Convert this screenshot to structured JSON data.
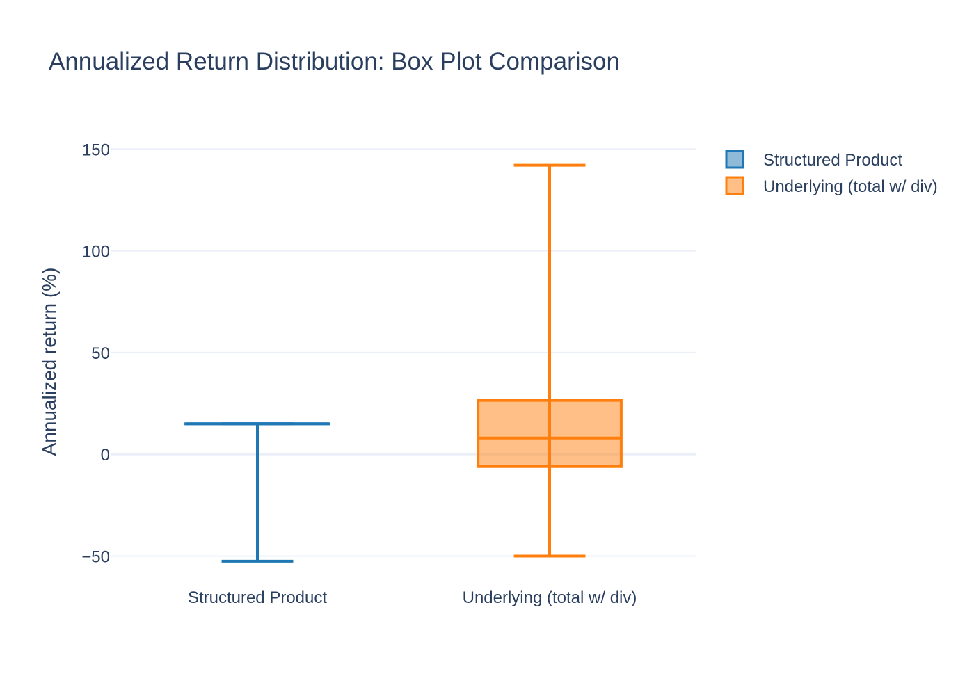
{
  "chart_data": {
    "type": "box",
    "title": "Annualized Return Distribution: Box Plot Comparison",
    "xlabel": "",
    "ylabel": "Annualized return (%)",
    "categories": [
      "Structured Product",
      "Underlying (total w/ div)"
    ],
    "ylim": [
      -57,
      160
    ],
    "yticks": [
      {
        "value": 150,
        "label": "150"
      },
      {
        "value": 100,
        "label": "100"
      },
      {
        "value": 50,
        "label": "50"
      },
      {
        "value": 0,
        "label": "0"
      },
      {
        "value": -50,
        "label": "−50"
      }
    ],
    "grid": true,
    "legend_position": "top-right",
    "series": [
      {
        "name": "Structured Product",
        "category": "Structured Product",
        "color": "#1f77b4",
        "fill": "rgba(31,119,180,0.5)",
        "min": -52.5,
        "q1": 15,
        "median": 15,
        "q3": 15,
        "max": 15
      },
      {
        "name": "Underlying (total w/ div)",
        "category": "Underlying (total w/ div)",
        "color": "#ff7f0e",
        "fill": "rgba(255,127,14,0.5)",
        "min": -50,
        "q1": -6,
        "median": 8,
        "q3": 26.5,
        "max": 142
      }
    ]
  }
}
